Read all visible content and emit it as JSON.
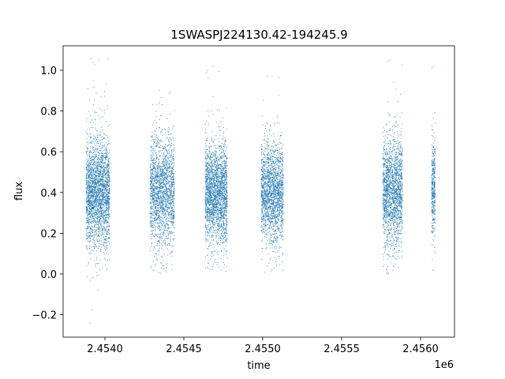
{
  "chart_data": {
    "type": "scatter",
    "title": "1SWASPJ224130.42-194245.9",
    "xlabel": "time",
    "ylabel": "flux",
    "x_offset_label": "1e6",
    "xlim": [
      2453735,
      2456215
    ],
    "ylim": [
      -0.31,
      1.12
    ],
    "x_ticks": [
      2.454,
      2.4545,
      2.455,
      2.4555,
      2.456
    ],
    "x_tick_labels": [
      "2.4540",
      "2.4545",
      "2.4550",
      "2.4555",
      "2.4560"
    ],
    "y_ticks": [
      -0.2,
      0.0,
      0.2,
      0.4,
      0.6,
      0.8,
      1.0
    ],
    "y_tick_labels": [
      "−0.2",
      "0.0",
      "0.2",
      "0.4",
      "0.6",
      "0.8",
      "1.0"
    ],
    "grid": false,
    "marker_color": "#1f77b4",
    "series": [
      {
        "values": [
          {
            "x": 2453888,
            "y": 0.4
          },
          {
            "x": 2453900,
            "y": 0.45
          },
          {
            "x": 2453915,
            "y": 0.32
          },
          {
            "x": 2453930,
            "y": 0.5
          },
          {
            "x": 2453945,
            "y": 0.38
          },
          {
            "x": 2453960,
            "y": 0.42
          },
          {
            "x": 2453975,
            "y": 0.55
          },
          {
            "x": 2453990,
            "y": 0.3
          },
          {
            "x": 2454005,
            "y": 0.44
          },
          {
            "x": 2453905,
            "y": -0.24
          },
          {
            "x": 2453925,
            "y": 0.95
          },
          {
            "x": 2453960,
            "y": 1.05
          },
          {
            "x": 2454293,
            "y": 0.42
          },
          {
            "x": 2454310,
            "y": 0.35
          },
          {
            "x": 2454330,
            "y": 0.48
          },
          {
            "x": 2454355,
            "y": 0.4
          },
          {
            "x": 2454380,
            "y": 0.28
          },
          {
            "x": 2454400,
            "y": 0.5
          },
          {
            "x": 2454425,
            "y": 0.38
          },
          {
            "x": 2454345,
            "y": 0.9
          },
          {
            "x": 2454390,
            "y": 0.01
          },
          {
            "x": 2454645,
            "y": 0.4
          },
          {
            "x": 2454665,
            "y": 0.46
          },
          {
            "x": 2454690,
            "y": 0.33
          },
          {
            "x": 2454715,
            "y": 0.42
          },
          {
            "x": 2454740,
            "y": 0.5
          },
          {
            "x": 2454760,
            "y": 0.37
          },
          {
            "x": 2454685,
            "y": 1.02
          },
          {
            "x": 2454735,
            "y": 0.02
          },
          {
            "x": 2454995,
            "y": 0.41
          },
          {
            "x": 2455020,
            "y": 0.36
          },
          {
            "x": 2455045,
            "y": 0.47
          },
          {
            "x": 2455070,
            "y": 0.39
          },
          {
            "x": 2455095,
            "y": 0.44
          },
          {
            "x": 2455120,
            "y": 0.31
          },
          {
            "x": 2455030,
            "y": 0.97
          },
          {
            "x": 2455010,
            "y": 0.01
          },
          {
            "x": 2455770,
            "y": 0.4
          },
          {
            "x": 2455790,
            "y": 0.46
          },
          {
            "x": 2455810,
            "y": 0.34
          },
          {
            "x": 2455830,
            "y": 0.42
          },
          {
            "x": 2455850,
            "y": 0.5
          },
          {
            "x": 2455870,
            "y": 0.38
          },
          {
            "x": 2455805,
            "y": 1.05
          },
          {
            "x": 2455790,
            "y": 0.01
          },
          {
            "x": 2456075,
            "y": 0.42
          },
          {
            "x": 2456082,
            "y": 0.35
          },
          {
            "x": 2456088,
            "y": 0.5
          },
          {
            "x": 2456085,
            "y": 1.02
          },
          {
            "x": 2456080,
            "y": 0.02
          }
        ]
      }
    ],
    "clusters": [
      {
        "x_range": [
          2453880,
          2454030
        ],
        "y_mean": 0.4,
        "y_spread": 0.13,
        "y_min": -0.24,
        "y_max": 1.06,
        "count": 2600
      },
      {
        "x_range": [
          2454285,
          2454440
        ],
        "y_mean": 0.4,
        "y_spread": 0.13,
        "y_min": 0.0,
        "y_max": 0.91,
        "count": 2000
      },
      {
        "x_range": [
          2454635,
          2454775
        ],
        "y_mean": 0.4,
        "y_spread": 0.12,
        "y_min": 0.01,
        "y_max": 1.03,
        "count": 2300
      },
      {
        "x_range": [
          2454990,
          2455130
        ],
        "y_mean": 0.4,
        "y_spread": 0.12,
        "y_min": 0.0,
        "y_max": 0.98,
        "count": 2000
      },
      {
        "x_range": [
          2455760,
          2455885
        ],
        "y_mean": 0.4,
        "y_spread": 0.13,
        "y_min": 0.0,
        "y_max": 1.06,
        "count": 1900
      },
      {
        "x_range": [
          2456070,
          2456093
        ],
        "y_mean": 0.42,
        "y_spread": 0.12,
        "y_min": 0.01,
        "y_max": 1.03,
        "count": 400
      }
    ]
  }
}
